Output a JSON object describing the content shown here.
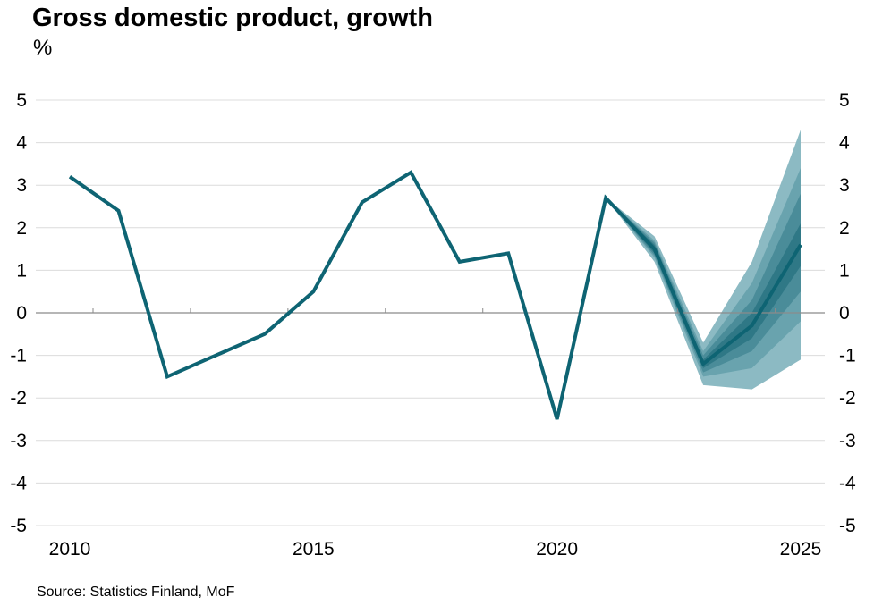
{
  "title": "Gross domestic product, growth",
  "unit": "%",
  "source": "Source: Statistics Finland, MoF",
  "chart_data": {
    "type": "line",
    "title": "Gross domestic product, growth",
    "ylabel": "%",
    "xlabel": "",
    "ylim": [
      -5,
      5
    ],
    "xlim": [
      2010,
      2025
    ],
    "x_ticks": [
      "2010",
      "2015",
      "2020",
      "2025"
    ],
    "y_ticks": [
      "5",
      "4",
      "3",
      "2",
      "1",
      "0",
      "-1",
      "-2",
      "-3",
      "-4",
      "-5"
    ],
    "grid": true,
    "series": [
      {
        "x": [
          2010,
          2011,
          2012,
          2013,
          2014,
          2015,
          2016,
          2017,
          2018,
          2019,
          2020,
          2021,
          2022,
          2023,
          2024,
          2025
        ],
        "values": [
          3.2,
          2.4,
          -1.5,
          -1.0,
          -0.5,
          0.5,
          2.6,
          3.3,
          1.2,
          1.4,
          -2.5,
          2.7,
          1.5,
          -1.2,
          -0.3,
          1.6
        ],
        "color": "#0e6473"
      }
    ],
    "fan_chart": {
      "x": [
        2021,
        2022,
        2023,
        2024,
        2025
      ],
      "bands": [
        {
          "lower": [
            2.7,
            1.2,
            -1.7,
            -1.8,
            -1.1
          ],
          "upper": [
            2.7,
            1.8,
            -0.7,
            1.2,
            4.3
          ],
          "color": "#8cbac3"
        },
        {
          "lower": [
            2.7,
            1.3,
            -1.5,
            -1.3,
            -0.2
          ],
          "upper": [
            2.7,
            1.7,
            -0.9,
            0.7,
            3.4
          ],
          "color": "#69a3ae"
        },
        {
          "lower": [
            2.7,
            1.35,
            -1.4,
            -0.9,
            0.5
          ],
          "upper": [
            2.7,
            1.65,
            -1.0,
            0.3,
            2.8
          ],
          "color": "#4a8c99"
        },
        {
          "lower": [
            2.7,
            1.4,
            -1.3,
            -0.6,
            1.1
          ],
          "upper": [
            2.7,
            1.6,
            -1.1,
            0.0,
            2.1
          ],
          "color": "#2f7886"
        }
      ]
    }
  }
}
